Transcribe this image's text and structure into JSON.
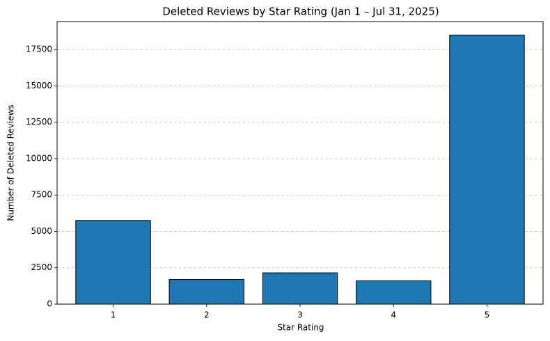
{
  "chart_data": {
    "type": "bar",
    "title": "Deleted Reviews by Star Rating (Jan 1 – Jul 31, 2025)",
    "x_label": "Star Rating",
    "y_label": "Number of Deleted Reviews",
    "categories": [
      "1",
      "2",
      "3",
      "4",
      "5"
    ],
    "values": [
      5750,
      1700,
      2150,
      1600,
      18500
    ],
    "color": "#1f77b4",
    "edge_color": "#000000",
    "ylim": [
      0,
      19425
    ],
    "yticks": [
      0,
      2500,
      5000,
      7500,
      10000,
      12500,
      15000,
      17500
    ],
    "grid": true
  }
}
